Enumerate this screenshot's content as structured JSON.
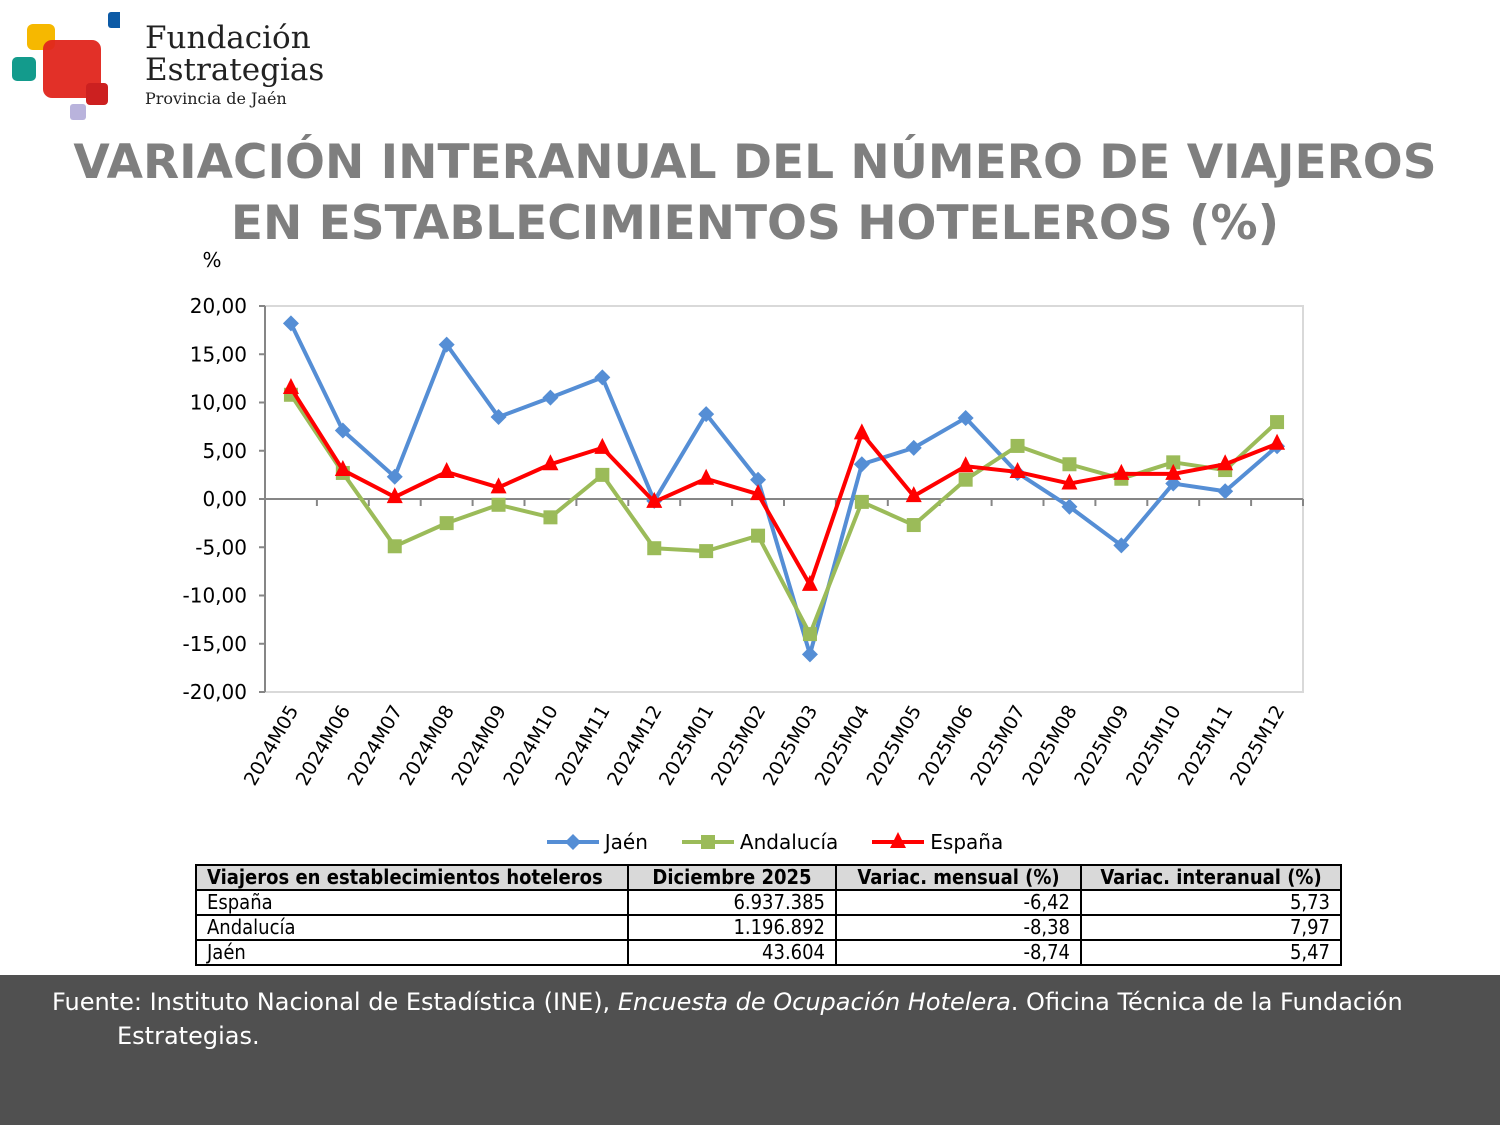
{
  "logo": {
    "line1": "Fundación",
    "line2": "Estrategias",
    "line3": "Provincia de Jaén"
  },
  "title": {
    "line1": "VARIACIÓN INTERANUAL DEL NÚMERO DE VIAJEROS",
    "line2": "EN ESTABLECIMIENTOS HOTELEROS (%)"
  },
  "chart_data": {
    "type": "line",
    "ylabel": "%",
    "ylim": [
      -20,
      20
    ],
    "yticks": [
      "20,00",
      "15,00",
      "10,00",
      "5,00",
      "0,00",
      "-5,00",
      "-10,00",
      "-15,00",
      "-20,00"
    ],
    "categories": [
      "2024M05",
      "2024M06",
      "2024M07",
      "2024M08",
      "2024M09",
      "2024M10",
      "2024M11",
      "2024M12",
      "2025M01",
      "2025M02",
      "2025M03",
      "2025M04",
      "2025M05",
      "2025M06",
      "2025M07",
      "2025M08",
      "2025M09",
      "2025M10",
      "2025M11",
      "2025M12"
    ],
    "legend_position": "bottom",
    "series": [
      {
        "name": "Jaén",
        "color": "#558ed5",
        "marker": "diamond",
        "values": [
          18.2,
          7.1,
          2.3,
          16.0,
          8.5,
          10.5,
          12.6,
          -0.2,
          8.8,
          2.0,
          -16.1,
          3.6,
          5.3,
          8.4,
          2.7,
          -0.8,
          -4.8,
          1.6,
          0.8,
          5.47
        ]
      },
      {
        "name": "Andalucía",
        "color": "#9bbb59",
        "marker": "square",
        "values": [
          10.8,
          2.7,
          -4.9,
          -2.5,
          -0.6,
          -1.9,
          2.5,
          -5.1,
          -5.4,
          -3.8,
          -14.0,
          -0.3,
          -2.7,
          2.0,
          5.5,
          3.6,
          2.1,
          3.8,
          3.0,
          7.97
        ]
      },
      {
        "name": "España",
        "color": "#ff0000",
        "marker": "triangle",
        "values": [
          11.5,
          3.0,
          0.2,
          2.8,
          1.2,
          3.6,
          5.3,
          -0.3,
          2.1,
          0.5,
          -8.9,
          6.8,
          0.3,
          3.4,
          2.8,
          1.6,
          2.6,
          2.6,
          3.6,
          5.73
        ]
      }
    ]
  },
  "table": {
    "headers": [
      "Viajeros en establecimientos hoteleros",
      "Diciembre 2025",
      "Variac. mensual (%)",
      "Variac. interanual (%)"
    ],
    "rows": [
      [
        "España",
        "6.937.385",
        "-6,42",
        "5,73"
      ],
      [
        "Andalucía",
        "1.196.892",
        "-8,38",
        "7,97"
      ],
      [
        "Jaén",
        "43.604",
        "-8,74",
        "5,47"
      ]
    ]
  },
  "footer": {
    "prefix": "Fuente: Instituto Nacional de Estadística (INE), ",
    "italic": "Encuesta de Ocupación Hotelera",
    "suffix": ". Oficina Técnica de la Fundación",
    "line2": "Estrategias."
  }
}
